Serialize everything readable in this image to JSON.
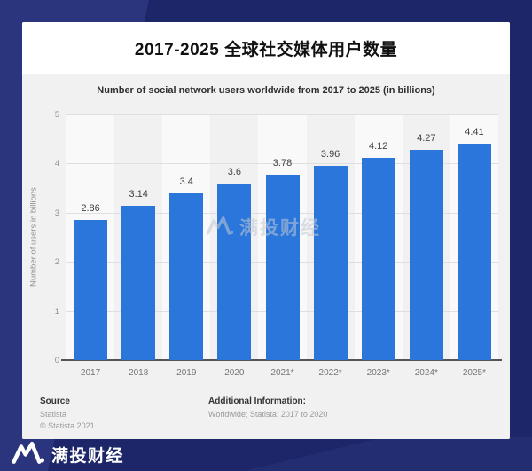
{
  "header": {
    "title": "2017-2025 全球社交媒体用户数量"
  },
  "chart_data": {
    "type": "bar",
    "title": "Number of social network users worldwide from 2017 to 2025 (in billions)",
    "ylabel": "Number of users in billions",
    "categories": [
      "2017",
      "2018",
      "2019",
      "2020",
      "2021*",
      "2022*",
      "2023*",
      "2024*",
      "2025*"
    ],
    "values": [
      2.86,
      3.14,
      3.4,
      3.6,
      3.78,
      3.96,
      4.12,
      4.27,
      4.41
    ],
    "value_labels": [
      "2.86",
      "3.14",
      "3.4",
      "3.6",
      "3.78",
      "3.96",
      "4.12",
      "4.27",
      "4.41"
    ],
    "ylim": [
      0,
      5
    ],
    "yticks": [
      0,
      1,
      2,
      3,
      4,
      5
    ],
    "grid": true,
    "legend": false,
    "bar_color": "#2b76db",
    "plot_band_color": "rgba(255,255,255,0.55)",
    "plot_bg": "#f1f1f2"
  },
  "footer": {
    "source_label": "Source",
    "source_line1": "Statista",
    "source_line2": "© Statista 2021",
    "additional_label": "Additional Information:",
    "additional_line": "Worldwide; Statista; 2017 to 2020"
  },
  "watermark": {
    "text": "满投财经"
  },
  "brand": {
    "name": "满投财经"
  },
  "colors": {
    "bg_dark": "#1c2668",
    "bg_accent": "#2a357d",
    "header_bg": "#ffffff",
    "chart_bg": "#f1f1f2",
    "bar": "#2b76db"
  }
}
